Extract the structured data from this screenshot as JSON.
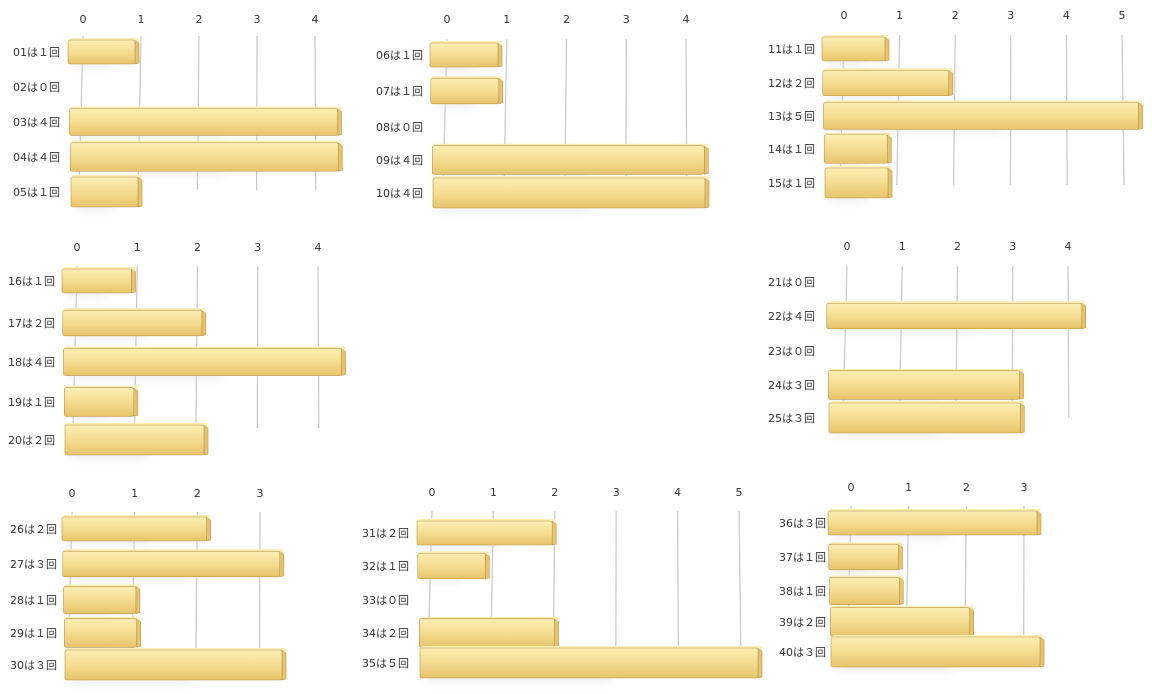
{
  "colors": {
    "bar_top": "#fbeeb4",
    "bar_mid": "#f6df94",
    "bar_low": "#e7c46b",
    "bar_edge": "#b8944a",
    "grid": "#c8c8c8",
    "shadow": "#d9d9d9"
  },
  "chart_data": [
    {
      "type": "bar",
      "orientation": "horizontal",
      "categories": [
        "01は１回",
        "02は０回",
        "03は４回",
        "04は４回",
        "05は１回"
      ],
      "values": [
        1,
        0,
        4,
        4,
        1
      ],
      "ticks": [
        "0",
        "1",
        "2",
        "3",
        "4"
      ],
      "xlim": [
        0,
        4
      ]
    },
    {
      "type": "bar",
      "orientation": "horizontal",
      "categories": [
        "06は１回",
        "07は１回",
        "08は０回",
        "09は４回",
        "10は４回"
      ],
      "values": [
        1,
        1,
        0,
        4,
        4
      ],
      "ticks": [
        "0",
        "1",
        "2",
        "3",
        "4"
      ],
      "xlim": [
        0,
        4
      ]
    },
    {
      "type": "bar",
      "orientation": "horizontal",
      "categories": [
        "11は１回",
        "12は２回",
        "13は５回",
        "14は１回",
        "15は１回"
      ],
      "values": [
        1,
        2,
        5,
        1,
        1
      ],
      "ticks": [
        "0",
        "1",
        "2",
        "3",
        "4",
        "5"
      ],
      "xlim": [
        0,
        5
      ]
    },
    {
      "type": "bar",
      "orientation": "horizontal",
      "categories": [
        "16は１回",
        "17は２回",
        "18は４回",
        "19は１回",
        "20は２回"
      ],
      "values": [
        1,
        2,
        4,
        1,
        2
      ],
      "ticks": [
        "0",
        "1",
        "2",
        "3",
        "4"
      ],
      "xlim": [
        0,
        4
      ]
    },
    {
      "type": "bar",
      "orientation": "horizontal",
      "categories": [
        "21は０回",
        "22は４回",
        "23は０回",
        "24は３回",
        "25は３回"
      ],
      "values": [
        0,
        4,
        0,
        3,
        3
      ],
      "ticks": [
        "0",
        "1",
        "2",
        "3",
        "4"
      ],
      "xlim": [
        0,
        4
      ]
    },
    {
      "type": "bar",
      "orientation": "horizontal",
      "categories": [
        "26は２回",
        "27は３回",
        "28は１回",
        "29は１回",
        "30は３回"
      ],
      "values": [
        2,
        3,
        1,
        1,
        3
      ],
      "ticks": [
        "0",
        "1",
        "2",
        "3"
      ],
      "xlim": [
        0,
        3
      ]
    },
    {
      "type": "bar",
      "orientation": "horizontal",
      "categories": [
        "31は２回",
        "32は１回",
        "33は０回",
        "34は２回",
        "35は５回"
      ],
      "values": [
        2,
        1,
        0,
        2,
        5
      ],
      "ticks": [
        "0",
        "1",
        "2",
        "3",
        "4",
        "5"
      ],
      "xlim": [
        0,
        5
      ]
    },
    {
      "type": "bar",
      "orientation": "horizontal",
      "categories": [
        "36は３回",
        "37は１回",
        "38は１回",
        "39は２回",
        "40は３回"
      ],
      "values": [
        3,
        1,
        1,
        2,
        3
      ],
      "ticks": [
        "0",
        "1",
        "2",
        "3"
      ],
      "xlim": [
        0,
        3
      ]
    }
  ]
}
